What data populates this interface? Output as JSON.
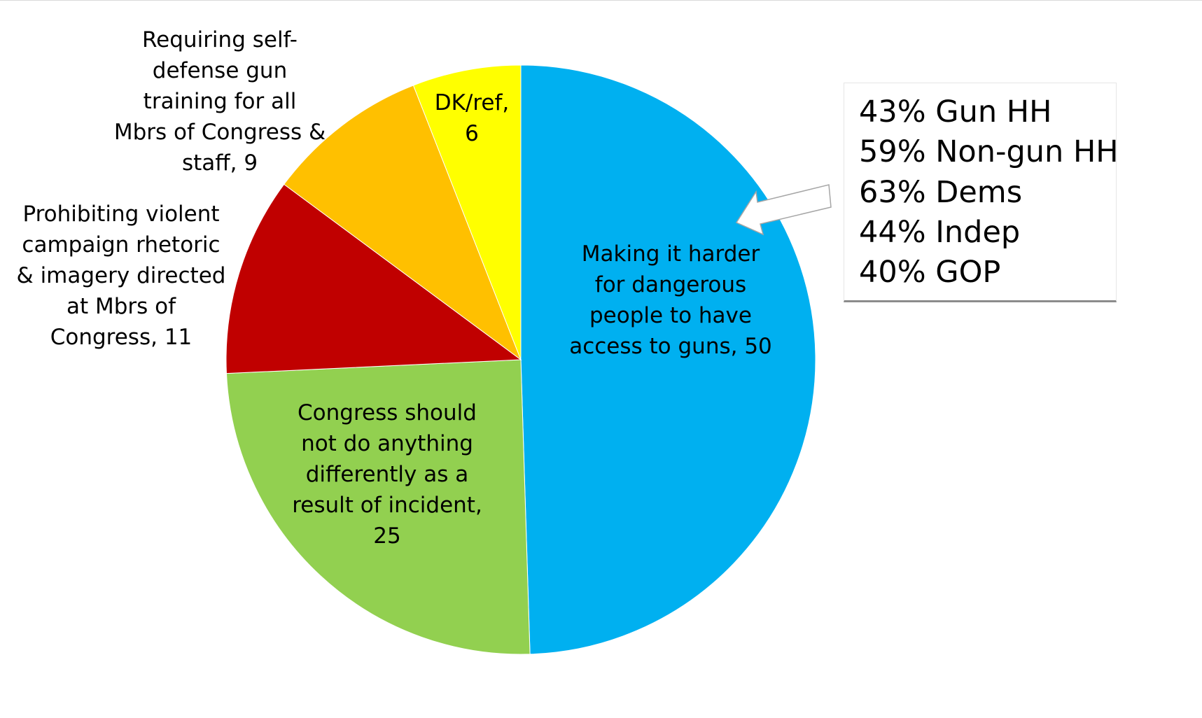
{
  "chart_data": {
    "type": "pie",
    "title": "",
    "start_angle_deg": 0,
    "direction": "clockwise",
    "slices": [
      {
        "label_lines": [
          "Making it harder",
          "for dangerous",
          "people to have",
          "access to guns, 50"
        ],
        "category": "Making it harder for dangerous people to have access to guns",
        "value": 50,
        "color": "#00b0f0"
      },
      {
        "label_lines": [
          "Congress should",
          "not do anything",
          "differently as a",
          "result of incident,",
          "25"
        ],
        "category": "Congress should not do anything differently as a result of incident",
        "value": 25,
        "color": "#92d050"
      },
      {
        "label_lines": [
          "Prohibiting violent",
          "campaign rhetoric",
          "& imagery directed",
          "at Mbrs of",
          "Congress, 11"
        ],
        "category": "Prohibiting violent campaign rhetoric & imagery directed at Mbrs of Congress",
        "value": 11,
        "color": "#c00000"
      },
      {
        "label_lines": [
          "Requiring self-",
          "defense gun",
          "training for all",
          "Mbrs of Congress &",
          "staff, 9"
        ],
        "category": "Requiring self-defense gun training for all Mbrs of Congress & staff",
        "value": 9,
        "color": "#ffc000"
      },
      {
        "label_lines": [
          "DK/ref,",
          "6"
        ],
        "category": "DK/ref",
        "value": 6,
        "color": "#ffff00"
      }
    ]
  },
  "callout": {
    "lines": [
      "43% Gun HH",
      "59% Non-gun HH",
      "63% Dems",
      "44% Indep",
      "40% GOP"
    ],
    "arrow_color": "#ffffff"
  }
}
